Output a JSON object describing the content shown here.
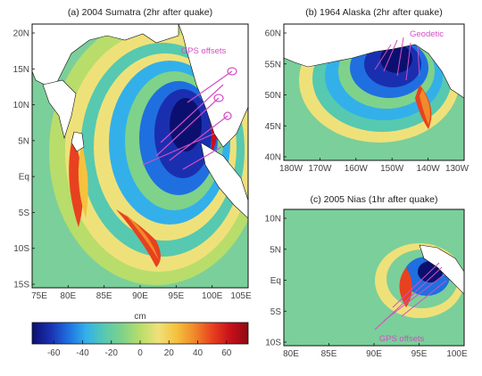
{
  "chart_data": [
    {
      "type": "heatmap",
      "title": "(a) 2004 Sumatra (2hr after quake)",
      "xticks": [
        "75E",
        "80E",
        "85E",
        "90E",
        "95E",
        "100E",
        "105E"
      ],
      "yticks": [
        "20N",
        "15N",
        "10N",
        "5N",
        "Eq",
        "5S",
        "10S",
        "15S"
      ],
      "xlim": [
        75,
        105
      ],
      "ylim": [
        -15,
        22
      ],
      "annotation": "GPS offsets"
    },
    {
      "type": "heatmap",
      "title": "(b) 1964 Alaska (2hr after quake)",
      "xticks": [
        "180W",
        "170W",
        "160W",
        "150W",
        "140W",
        "130W"
      ],
      "yticks": [
        "60N",
        "55N",
        "50N",
        "45N",
        "40N"
      ],
      "xlim": [
        -182,
        -126
      ],
      "ylim": [
        39,
        62
      ],
      "annotation": "Geodetic"
    },
    {
      "type": "heatmap",
      "title": "(c) 2005 Nias (1hr after quake)",
      "xticks": [
        "80E",
        "85E",
        "90E",
        "95E",
        "100E"
      ],
      "yticks": [
        "10N",
        "5N",
        "Eq",
        "5S",
        "10S"
      ],
      "xlim": [
        80,
        100
      ],
      "ylim": [
        -10,
        11
      ],
      "annotation": "GPS offsets"
    }
  ],
  "colorbar": {
    "unit": "cm",
    "range": [
      -75,
      75
    ],
    "ticks": [
      "-60",
      "-40",
      "-20",
      "0",
      "20",
      "40",
      "60"
    ],
    "tick_values": [
      -60,
      -40,
      -20,
      0,
      20,
      40,
      60
    ],
    "colors": [
      "#0b1070",
      "#1a2fb0",
      "#1f6fe0",
      "#33b0ea",
      "#56c9b0",
      "#7fd28a",
      "#b8dd6a",
      "#efe17a",
      "#f5c23e",
      "#f08a2a",
      "#e8411f",
      "#c8101a",
      "#8e0a12"
    ]
  },
  "colors": {
    "ocean": "#7bcf9a",
    "land": "#ffffff",
    "gps": "#d24fc4"
  }
}
